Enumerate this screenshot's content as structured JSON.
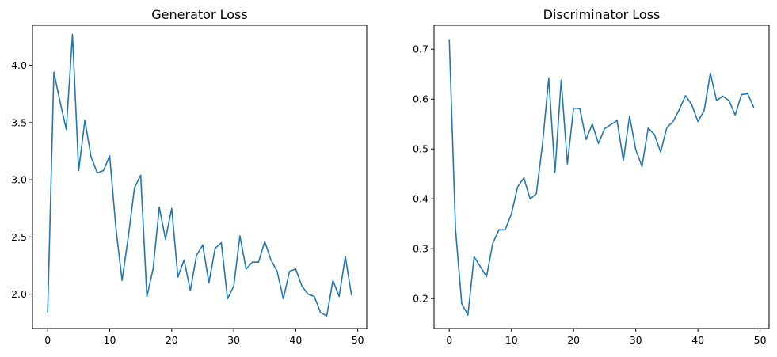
{
  "chart_data": [
    {
      "type": "line",
      "title": "Generator Loss",
      "xlabel": "",
      "ylabel": "",
      "xlim": [
        -2.45,
        51.45
      ],
      "ylim": [
        1.7,
        4.35
      ],
      "xticks": [
        0,
        10,
        20,
        30,
        40,
        50
      ],
      "yticks": [
        2.0,
        2.5,
        3.0,
        3.5,
        4.0
      ],
      "ytick_labels": [
        "2.0",
        "2.5",
        "3.0",
        "3.5",
        "4.0"
      ],
      "xtick_labels": [
        "0",
        "10",
        "20",
        "30",
        "40",
        "50"
      ],
      "grid": false,
      "series": [
        {
          "color": "#1f77b4",
          "x": [
            0,
            1,
            2,
            3,
            4,
            5,
            6,
            7,
            8,
            9,
            10,
            11,
            12,
            13,
            14,
            15,
            16,
            17,
            18,
            19,
            20,
            21,
            22,
            23,
            24,
            25,
            26,
            27,
            28,
            29,
            30,
            31,
            32,
            33,
            34,
            35,
            36,
            37,
            38,
            39,
            40,
            41,
            42,
            43,
            44,
            45,
            46,
            47,
            48,
            49
          ],
          "values": [
            1.84,
            3.94,
            3.68,
            3.44,
            4.27,
            3.08,
            3.52,
            3.2,
            3.06,
            3.08,
            3.21,
            2.58,
            2.12,
            2.5,
            2.93,
            3.04,
            1.98,
            2.22,
            2.76,
            2.48,
            2.75,
            2.15,
            2.3,
            2.03,
            2.34,
            2.43,
            2.1,
            2.4,
            2.45,
            1.96,
            2.07,
            2.51,
            2.22,
            2.28,
            2.28,
            2.46,
            2.3,
            2.2,
            1.96,
            2.2,
            2.22,
            2.07,
            2.0,
            1.98,
            1.84,
            1.81,
            2.12,
            1.98,
            2.33,
            1.99
          ]
        }
      ]
    },
    {
      "type": "line",
      "title": "Discriminator Loss",
      "xlabel": "",
      "ylabel": "",
      "xlim": [
        -2.45,
        51.45
      ],
      "ylim": [
        0.14,
        0.748
      ],
      "xticks": [
        0,
        10,
        20,
        30,
        40,
        50
      ],
      "yticks": [
        0.2,
        0.3,
        0.4,
        0.5,
        0.6,
        0.7
      ],
      "ytick_labels": [
        "0.2",
        "0.3",
        "0.4",
        "0.5",
        "0.6",
        "0.7"
      ],
      "xtick_labels": [
        "0",
        "10",
        "20",
        "30",
        "40",
        "50"
      ],
      "grid": false,
      "series": [
        {
          "color": "#1f77b4",
          "x": [
            0,
            1,
            2,
            3,
            4,
            5,
            6,
            7,
            8,
            9,
            10,
            11,
            12,
            13,
            14,
            15,
            16,
            17,
            18,
            19,
            20,
            21,
            22,
            23,
            24,
            25,
            26,
            27,
            28,
            29,
            30,
            31,
            32,
            33,
            34,
            35,
            36,
            37,
            38,
            39,
            40,
            41,
            42,
            43,
            44,
            45,
            46,
            47,
            48,
            49
          ],
          "values": [
            0.72,
            0.34,
            0.19,
            0.167,
            0.284,
            0.264,
            0.244,
            0.311,
            0.338,
            0.338,
            0.37,
            0.424,
            0.442,
            0.4,
            0.41,
            0.51,
            0.642,
            0.453,
            0.638,
            0.47,
            0.582,
            0.581,
            0.519,
            0.55,
            0.511,
            0.541,
            0.549,
            0.557,
            0.477,
            0.566,
            0.499,
            0.465,
            0.542,
            0.529,
            0.494,
            0.543,
            0.555,
            0.579,
            0.607,
            0.589,
            0.555,
            0.577,
            0.652,
            0.597,
            0.606,
            0.597,
            0.568,
            0.609,
            0.611,
            0.583
          ]
        }
      ]
    }
  ]
}
